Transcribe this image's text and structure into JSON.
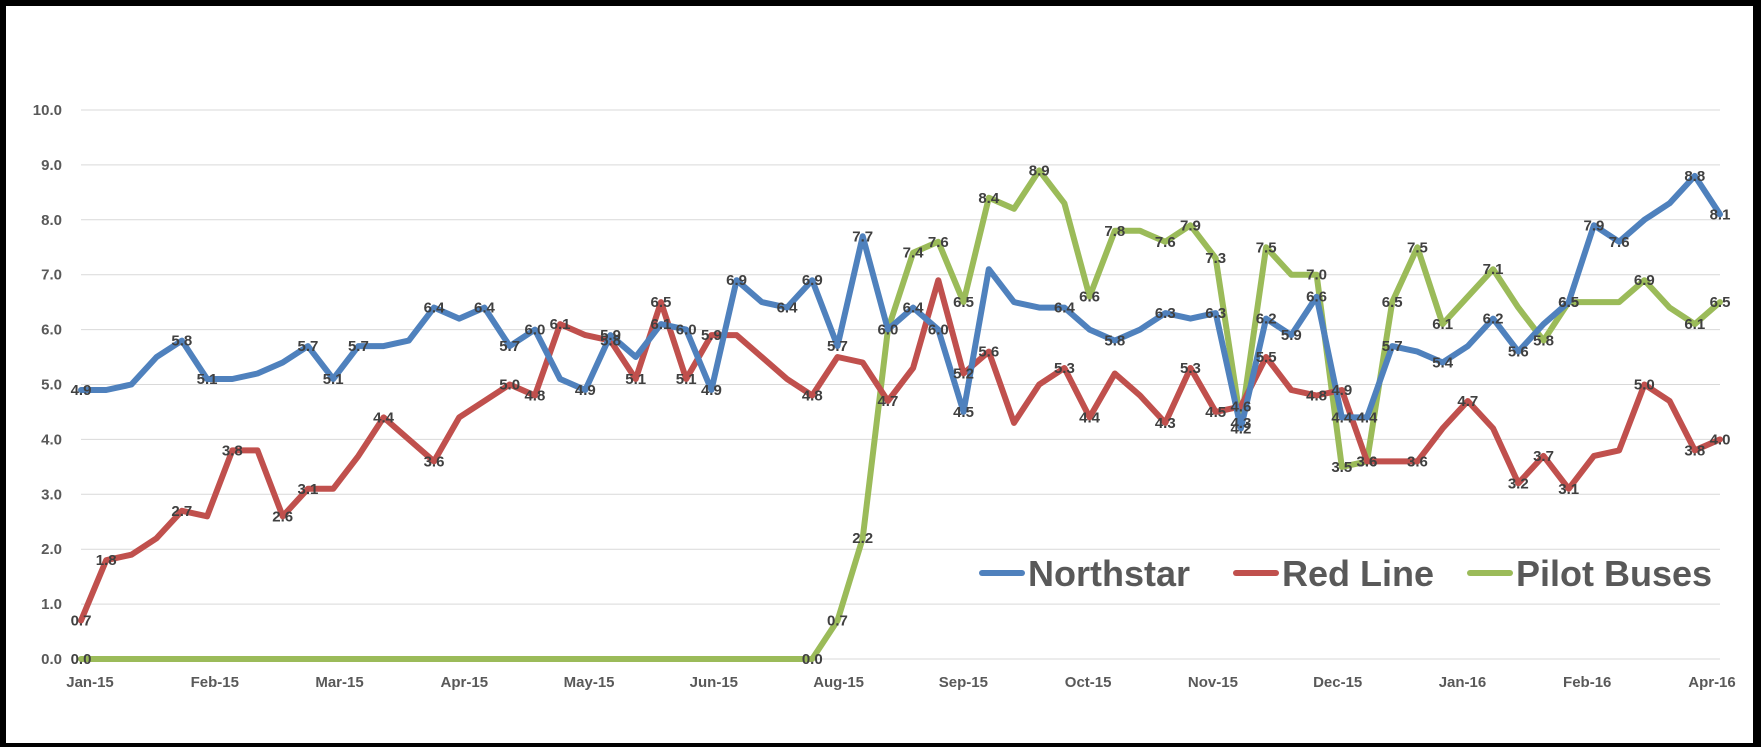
{
  "chart_data": {
    "type": "line",
    "title": "",
    "xlabel": "",
    "ylabel": "",
    "ylim": [
      0,
      10
    ],
    "y_ticks": [
      "0.0",
      "1.0",
      "2.0",
      "3.0",
      "4.0",
      "5.0",
      "6.0",
      "7.0",
      "8.0",
      "9.0",
      "10.0"
    ],
    "x_ticks": [
      "Jan-15",
      "Feb-15",
      "Mar-15",
      "Apr-15",
      "May-15",
      "Jun-15",
      "Aug-15",
      "Sep-15",
      "Oct-15",
      "Nov-15",
      "Dec-15",
      "Jan-16",
      "Feb-16",
      "Apr-16"
    ],
    "grid": true,
    "legend_position": "bottom-right",
    "colors": {
      "Northstar": "#4f81bd",
      "Red Line": "#c0504d",
      "Pilot Buses": "#9bbb59"
    },
    "series": [
      {
        "name": "Northstar",
        "values": [
          4.9,
          4.9,
          5.0,
          5.5,
          5.8,
          5.1,
          5.1,
          5.2,
          5.4,
          5.7,
          5.1,
          5.7,
          5.7,
          5.8,
          6.4,
          6.2,
          6.4,
          5.7,
          6.0,
          5.1,
          4.9,
          5.9,
          5.5,
          6.1,
          6.0,
          4.9,
          6.9,
          6.5,
          6.4,
          6.9,
          5.7,
          7.7,
          6.0,
          6.4,
          6.0,
          4.5,
          7.1,
          6.5,
          6.4,
          6.4,
          6.0,
          5.8,
          6.0,
          6.3,
          6.2,
          6.3,
          4.2,
          6.2,
          5.9,
          6.6,
          4.4,
          4.4,
          5.7,
          5.6,
          5.4,
          5.7,
          6.2,
          5.6,
          6.1,
          6.5,
          7.9,
          7.6,
          8.0,
          8.3,
          8.8,
          8.1
        ],
        "labels": [
          "4.9",
          "",
          "",
          "",
          "5.8",
          "5.1",
          "",
          "",
          "",
          "5.7",
          "5.1",
          "5.7",
          "",
          "",
          "6.4",
          "",
          "6.4",
          "5.7",
          "6.0",
          "",
          "4.9",
          "5.9",
          "",
          "6.1",
          "6.0",
          "4.9",
          "6.9",
          "",
          "6.4",
          "6.9",
          "5.7",
          "7.7",
          "6.0",
          "6.4",
          "6.0",
          "4.5",
          "",
          "",
          "",
          "6.4",
          "",
          "5.8",
          "",
          "6.3",
          "",
          "6.3",
          "4.2",
          "6.2",
          "5.9",
          "6.6",
          "4.4",
          "4.4",
          "5.7",
          "",
          "5.4",
          "",
          "6.2",
          "5.6",
          "",
          "6.5",
          "7.9",
          "7.6",
          "",
          "",
          "8.8",
          "8.1"
        ]
      },
      {
        "name": "Red Line",
        "values": [
          0.7,
          1.8,
          1.9,
          2.2,
          2.7,
          2.6,
          3.8,
          3.8,
          2.6,
          3.1,
          3.1,
          3.7,
          4.4,
          4.0,
          3.6,
          4.4,
          4.7,
          5.0,
          4.8,
          6.1,
          5.9,
          5.8,
          5.1,
          6.5,
          5.1,
          5.9,
          5.9,
          5.5,
          5.1,
          4.8,
          5.5,
          5.4,
          4.7,
          5.3,
          6.9,
          5.2,
          5.6,
          4.3,
          5.0,
          5.3,
          4.4,
          5.2,
          4.8,
          4.3,
          5.3,
          4.5,
          4.6,
          5.5,
          4.9,
          4.8,
          4.9,
          3.6,
          3.6,
          3.6,
          4.2,
          4.7,
          4.2,
          3.2,
          3.7,
          3.1,
          3.7,
          3.8,
          5.0,
          4.7,
          3.8,
          4.0
        ],
        "labels": [
          "0.7",
          "1.8",
          "",
          "",
          "2.7",
          "",
          "3.8",
          "",
          "2.6",
          "3.1",
          "",
          "",
          "4.4",
          "",
          "3.6",
          "",
          "",
          "5.0",
          "4.8",
          "6.1",
          "",
          "5.8",
          "5.1",
          "6.5",
          "5.1",
          "5.9",
          "",
          "",
          "",
          "4.8",
          "",
          "",
          "4.7",
          "",
          "",
          "5.2",
          "5.6",
          "",
          "",
          "5.3",
          "4.4",
          "",
          "",
          "4.3",
          "5.3",
          "4.5",
          "4.6",
          "5.5",
          "",
          "4.8",
          "4.9",
          "3.6",
          "",
          "3.6",
          "",
          "4.7",
          "",
          "3.2",
          "3.7",
          "3.1",
          "",
          "",
          "5.0",
          "",
          "3.8",
          "4.0"
        ]
      },
      {
        "name": "Pilot Buses",
        "values": [
          0.0,
          0.0,
          0.0,
          0.0,
          0.0,
          0.0,
          0.0,
          0.0,
          0.0,
          0.0,
          0.0,
          0.0,
          0.0,
          0.0,
          0.0,
          0.0,
          0.0,
          0.0,
          0.0,
          0.0,
          0.0,
          0.0,
          0.0,
          0.0,
          0.0,
          0.0,
          0.0,
          0.0,
          0.0,
          0.0,
          0.7,
          2.2,
          6.0,
          7.4,
          7.6,
          6.5,
          8.4,
          8.2,
          8.9,
          8.3,
          6.6,
          7.8,
          7.8,
          7.6,
          7.9,
          7.3,
          4.3,
          7.5,
          7.0,
          7.0,
          3.5,
          3.6,
          6.5,
          7.5,
          6.1,
          6.6,
          7.1,
          6.4,
          5.8,
          6.5,
          6.5,
          6.5,
          6.9,
          6.4,
          6.1,
          6.5
        ],
        "labels": [
          "0.0",
          "",
          "",
          "",
          "",
          "",
          "",
          "",
          "",
          "",
          "",
          "",
          "",
          "",
          "",
          "",
          "",
          "",
          "",
          "",
          "",
          "",
          "",
          "",
          "",
          "",
          "",
          "",
          "",
          "0.0",
          "0.7",
          "2.2",
          "",
          "7.4",
          "7.6",
          "6.5",
          "8.4",
          "",
          "8.9",
          "",
          "6.6",
          "7.8",
          "",
          "7.6",
          "7.9",
          "7.3",
          "4.3",
          "7.5",
          "",
          "7.0",
          "3.5",
          "3.6",
          "6.5",
          "7.5",
          "6.1",
          "",
          "7.1",
          "",
          "5.8",
          "6.5",
          "",
          "",
          "6.9",
          "",
          "6.1",
          "6.5"
        ]
      }
    ]
  }
}
